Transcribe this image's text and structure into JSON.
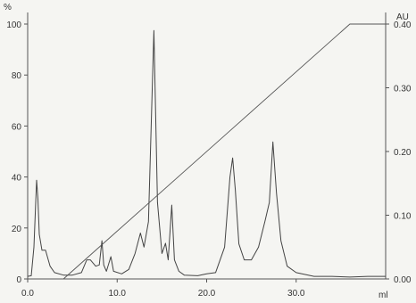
{
  "chart_data": {
    "type": "line",
    "left_axis_unit": "%",
    "right_axis_unit": "AU",
    "x_axis_unit": "ml",
    "xlim": [
      0,
      40
    ],
    "left_ylim": [
      0,
      100
    ],
    "right_ylim": [
      0,
      0.4
    ],
    "x_ticks": [
      0,
      10,
      20,
      30
    ],
    "x_tick_labels": [
      "0.0",
      "10.0",
      "20.0",
      "30.0"
    ],
    "left_ticks": [
      0,
      20,
      40,
      60,
      80,
      100
    ],
    "left_tick_labels": [
      "0",
      "20",
      "40",
      "60",
      "80",
      "100"
    ],
    "right_ticks": [
      0,
      0.1,
      0.2,
      0.3,
      0.4
    ],
    "right_tick_labels": [
      "0.00",
      "0.10",
      "0.20",
      "0.30",
      "0.40"
    ],
    "grid": false,
    "series": [
      {
        "axis": "right",
        "points": [
          [
            0.0,
            0.004
          ],
          [
            0.4,
            0.005
          ],
          [
            0.7,
            0.05
          ],
          [
            0.9,
            0.12
          ],
          [
            1.0,
            0.155
          ],
          [
            1.15,
            0.125
          ],
          [
            1.3,
            0.07
          ],
          [
            1.6,
            0.045
          ],
          [
            2.0,
            0.045
          ],
          [
            2.5,
            0.02
          ],
          [
            3.0,
            0.01
          ],
          [
            4.0,
            0.006
          ],
          [
            5.0,
            0.006
          ],
          [
            6.0,
            0.01
          ],
          [
            6.6,
            0.03
          ],
          [
            7.0,
            0.03
          ],
          [
            7.6,
            0.02
          ],
          [
            8.0,
            0.022
          ],
          [
            8.3,
            0.06
          ],
          [
            8.5,
            0.022
          ],
          [
            8.8,
            0.012
          ],
          [
            9.3,
            0.035
          ],
          [
            9.6,
            0.012
          ],
          [
            10.5,
            0.008
          ],
          [
            11.3,
            0.015
          ],
          [
            12.0,
            0.04
          ],
          [
            12.6,
            0.072
          ],
          [
            13.0,
            0.05
          ],
          [
            13.5,
            0.09
          ],
          [
            14.1,
            0.39
          ],
          [
            14.5,
            0.12
          ],
          [
            15.0,
            0.04
          ],
          [
            15.4,
            0.056
          ],
          [
            15.7,
            0.03
          ],
          [
            16.1,
            0.116
          ],
          [
            16.4,
            0.03
          ],
          [
            16.9,
            0.012
          ],
          [
            17.5,
            0.006
          ],
          [
            19.0,
            0.005
          ],
          [
            20.0,
            0.008
          ],
          [
            21.0,
            0.01
          ],
          [
            22.0,
            0.05
          ],
          [
            22.6,
            0.16
          ],
          [
            22.9,
            0.19
          ],
          [
            23.2,
            0.14
          ],
          [
            23.6,
            0.055
          ],
          [
            24.2,
            0.03
          ],
          [
            25.0,
            0.03
          ],
          [
            25.8,
            0.05
          ],
          [
            26.5,
            0.09
          ],
          [
            27.0,
            0.12
          ],
          [
            27.4,
            0.215
          ],
          [
            27.8,
            0.135
          ],
          [
            28.3,
            0.06
          ],
          [
            29.0,
            0.02
          ],
          [
            30.0,
            0.01
          ],
          [
            32.0,
            0.004
          ],
          [
            34.0,
            0.004
          ],
          [
            36.0,
            0.003
          ],
          [
            38.0,
            0.004
          ],
          [
            40.0,
            0.004
          ]
        ]
      },
      {
        "axis": "left",
        "points": [
          [
            0.0,
            0
          ],
          [
            4.0,
            0
          ],
          [
            36.0,
            100
          ],
          [
            40.0,
            100
          ]
        ]
      }
    ]
  },
  "colors": {
    "background": "#f5f5f2",
    "trace": "#444444",
    "axis": "#555555"
  }
}
